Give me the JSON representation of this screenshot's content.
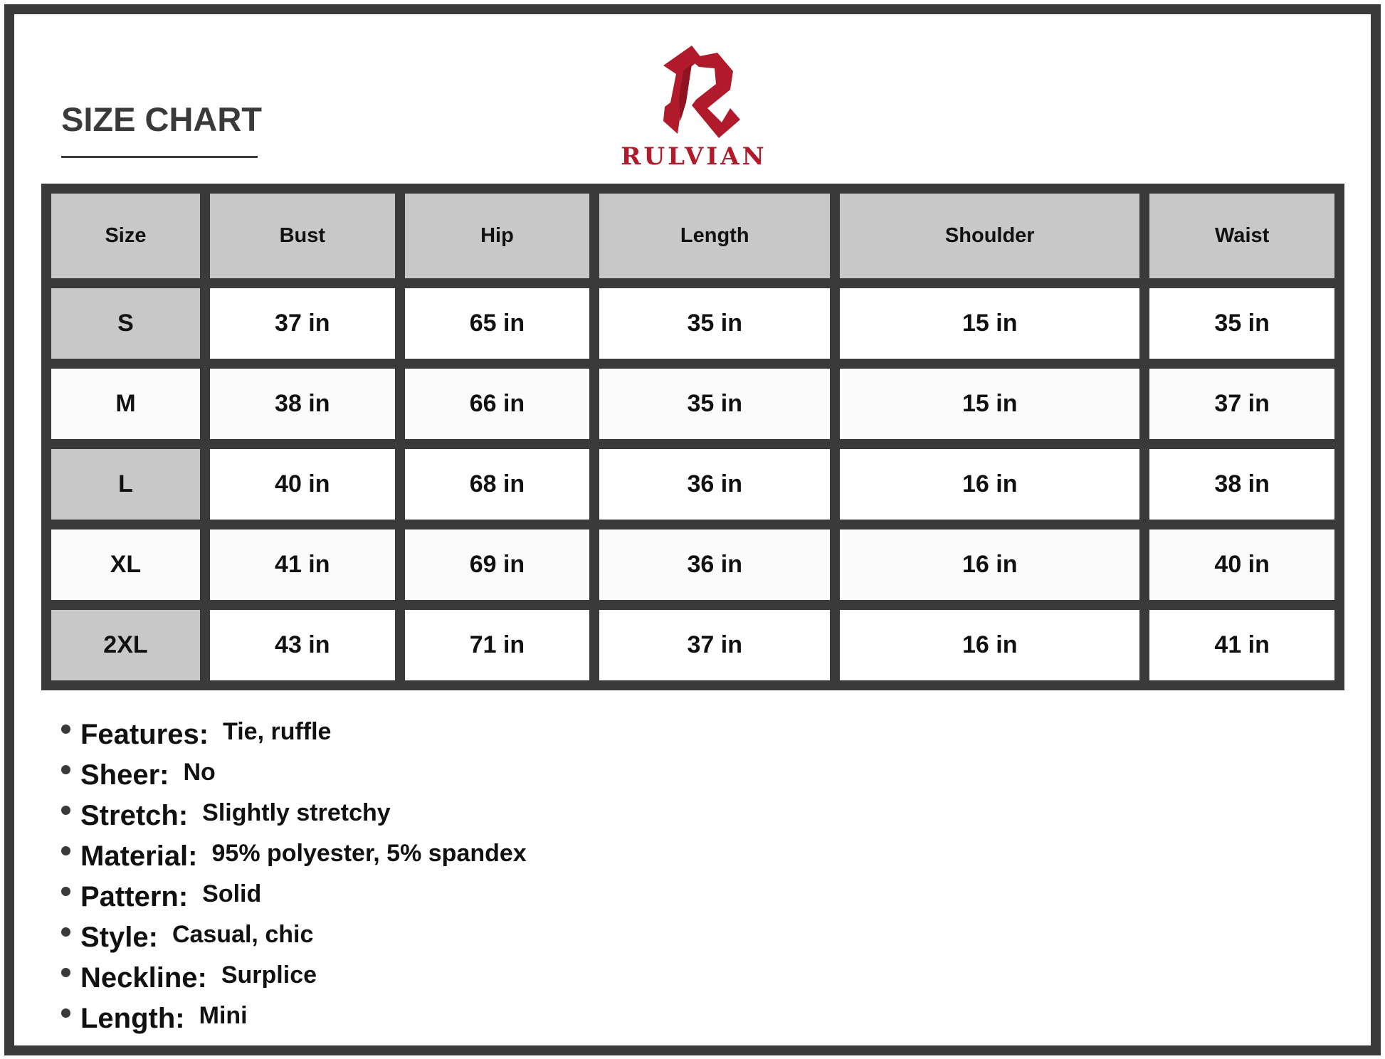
{
  "title": "SIZE CHART",
  "brand": {
    "name": "RULVIAN",
    "color": "#b01a2a"
  },
  "table": {
    "headers": [
      "Size",
      "Bust",
      "Hip",
      "Length",
      "Shoulder",
      "Waist"
    ],
    "rows": [
      [
        "S",
        "37 in",
        "65 in",
        "35 in",
        "15 in",
        "35 in"
      ],
      [
        "M",
        "38 in",
        "66 in",
        "35 in",
        "15 in",
        "37 in"
      ],
      [
        "L",
        "40 in",
        "68 in",
        "36 in",
        "16 in",
        "38 in"
      ],
      [
        "XL",
        "41 in",
        "69 in",
        "36 in",
        "16 in",
        "40 in"
      ],
      [
        "2XL",
        "43 in",
        "71 in",
        "37 in",
        "16 in",
        "41 in"
      ]
    ]
  },
  "features": [
    {
      "label": "Features:",
      "value": "Tie, ruffle"
    },
    {
      "label": "Sheer:",
      "value": "No"
    },
    {
      "label": "Stretch:",
      "value": "Slightly stretchy"
    },
    {
      "label": "Material:",
      "value": "95% polyester, 5% spandex"
    },
    {
      "label": "Pattern:",
      "value": "Solid"
    },
    {
      "label": "Style:",
      "value": "Casual, chic"
    },
    {
      "label": "Neckline:",
      "value": "Surplice"
    },
    {
      "label": "Length:",
      "value": "Mini"
    }
  ]
}
